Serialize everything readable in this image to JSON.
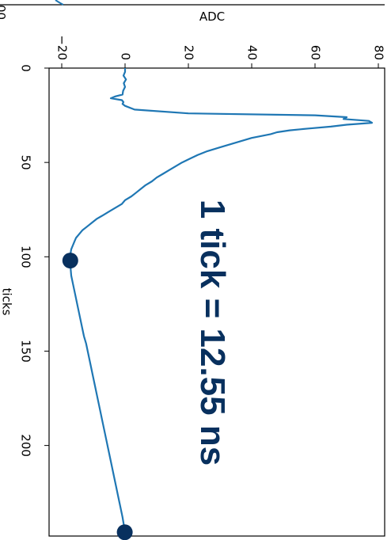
{
  "chart_data": {
    "type": "line",
    "rotation": "rotated 90 degrees clockwise",
    "xlabel": "ticks",
    "ylabel": "ADC",
    "xlim": [
      0,
      248
    ],
    "ylim": [
      -24,
      82
    ],
    "xticks": [
      0,
      50,
      100,
      150,
      200
    ],
    "yticks": [
      -20,
      0,
      20,
      40,
      60,
      80
    ],
    "ytick_labels": [
      "−20",
      "0",
      "20",
      "40",
      "60",
      "80"
    ],
    "grid": false,
    "line_color": "#1f77b4",
    "marker_color": "#08305e",
    "annotation": {
      "text": "1 tick = 12.55 ns",
      "color": "#08305e"
    },
    "series": [
      {
        "x": [
          0,
          2,
          4,
          6,
          8,
          10,
          12,
          14,
          15,
          16,
          17,
          18,
          19,
          20,
          22,
          24,
          25,
          26,
          27,
          28,
          29,
          30,
          31,
          32,
          33,
          34,
          35,
          36,
          37,
          38,
          40,
          42,
          44,
          46,
          48,
          50,
          52,
          54,
          56,
          58,
          60,
          62,
          64,
          66,
          68,
          70,
          72,
          74,
          76,
          78,
          80,
          82,
          84,
          86,
          88,
          90,
          92,
          94,
          96,
          98,
          100,
          102,
          106,
          110,
          114,
          118,
          122,
          126,
          130,
          134,
          138,
          142,
          146,
          150,
          154,
          158,
          162,
          166,
          170,
          174,
          178,
          182,
          186,
          190,
          194,
          198,
          202,
          206,
          210,
          214,
          218,
          222,
          226,
          230,
          234,
          238,
          242,
          246
        ],
        "y": [
          0,
          0,
          -0.5,
          0.3,
          -0.4,
          0,
          -0.6,
          -0.8,
          -3,
          -4.5,
          -1,
          -0.5,
          -0.8,
          0,
          3,
          20,
          60,
          70,
          69,
          77,
          78,
          70,
          65,
          58,
          52,
          48,
          46,
          43,
          40,
          38,
          34,
          30,
          26,
          23,
          20.5,
          18,
          16,
          14,
          12,
          10,
          8.5,
          6.5,
          5,
          3.5,
          2,
          0,
          -1,
          -3,
          -5,
          -7,
          -9,
          -10.5,
          -12,
          -13.5,
          -14.5,
          -15.5,
          -16,
          -16.5,
          -17,
          -17.2,
          -17.3,
          -17.3,
          -17.2,
          -17,
          -16.5,
          -16,
          -15.5,
          -15,
          -14.5,
          -14,
          -13.5,
          -13,
          -12.3,
          -11.8,
          -11.3,
          -10.8,
          -10.3,
          -9.8,
          -9.3,
          -8.8,
          -8.3,
          -7.8,
          -7.3,
          -6.8,
          -6.3,
          -5.8,
          -5.3,
          -4.8,
          -4.3,
          -3.8,
          -3.3,
          -2.8,
          -2.3,
          -1.8,
          -1.3,
          -0.8,
          -0.4,
          -0.1
        ]
      }
    ],
    "markers": [
      {
        "x": 102,
        "y": -17.3
      },
      {
        "x": 246,
        "y": -0.1
      }
    ]
  }
}
